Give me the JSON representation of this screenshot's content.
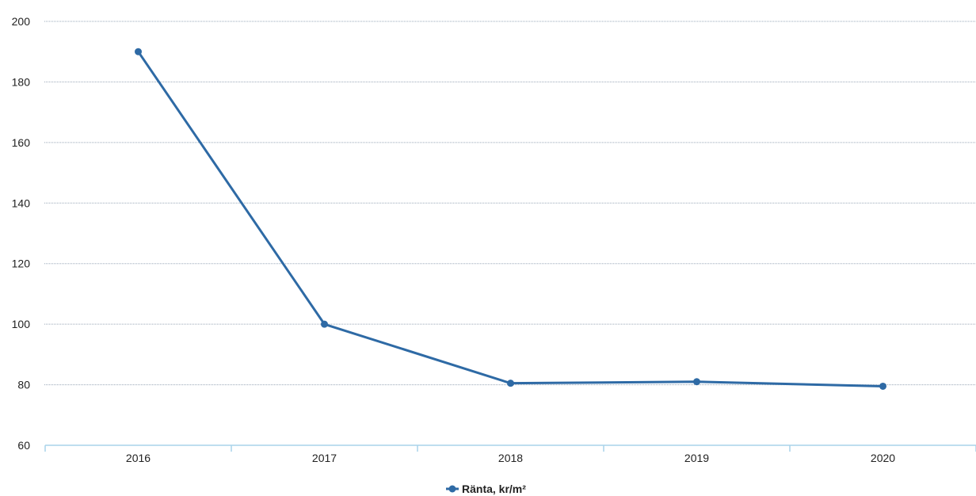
{
  "chart_data": {
    "type": "line",
    "categories": [
      "2016",
      "2017",
      "2018",
      "2019",
      "2020"
    ],
    "series": [
      {
        "name": "Ränta, kr/m²",
        "values": [
          190,
          100,
          80.5,
          81,
          79.5
        ]
      }
    ],
    "ylim": [
      60,
      200
    ],
    "yticks": [
      60,
      80,
      100,
      120,
      140,
      160,
      180,
      200
    ],
    "grid": true,
    "legend_position": "bottom-center",
    "colors": {
      "series": "#2e6aa5",
      "grid": "#9aa8b8",
      "axis": "#a9d3ea"
    }
  }
}
